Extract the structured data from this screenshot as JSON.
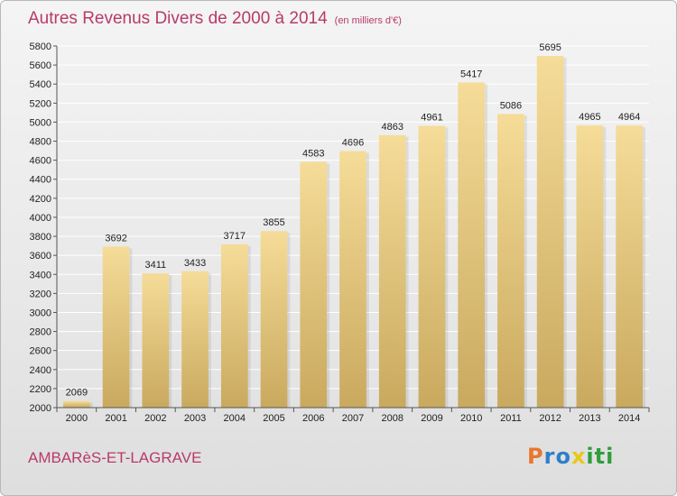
{
  "header": {
    "title": "Autres Revenus Divers de 2000 à 2014",
    "subtitle": "(en milliers d'€)"
  },
  "footer": {
    "commune": "AMBARèS-ET-LAGRAVE",
    "logo_letters": [
      "P",
      "r",
      "o",
      "x",
      "i",
      "t",
      "i"
    ],
    "logo_colors": [
      "#e8762c",
      "#2e7fc8",
      "#2e7fc8",
      "#e8c81a",
      "#2e9e3a",
      "#2e9e3a",
      "#2e9e3a"
    ]
  },
  "colors": {
    "bar_light": "#f5dc98",
    "bar_dark": "#c9a95e",
    "grid": "#ffffff"
  },
  "chart_data": {
    "type": "bar",
    "categories": [
      "2000",
      "2001",
      "2002",
      "2003",
      "2004",
      "2005",
      "2006",
      "2007",
      "2008",
      "2009",
      "2010",
      "2011",
      "2012",
      "2013",
      "2014"
    ],
    "values": [
      2069,
      3692,
      3411,
      3433,
      3717,
      3855,
      4583,
      4696,
      4863,
      4961,
      5417,
      5086,
      5695,
      4965,
      4964
    ],
    "ylim": [
      2000,
      5800
    ],
    "yticks": [
      2000,
      2200,
      2400,
      2600,
      2800,
      3000,
      3200,
      3400,
      3600,
      3800,
      4000,
      4200,
      4400,
      4600,
      4800,
      5000,
      5200,
      5400,
      5600,
      5800
    ],
    "grid": true,
    "data_labels": true
  }
}
